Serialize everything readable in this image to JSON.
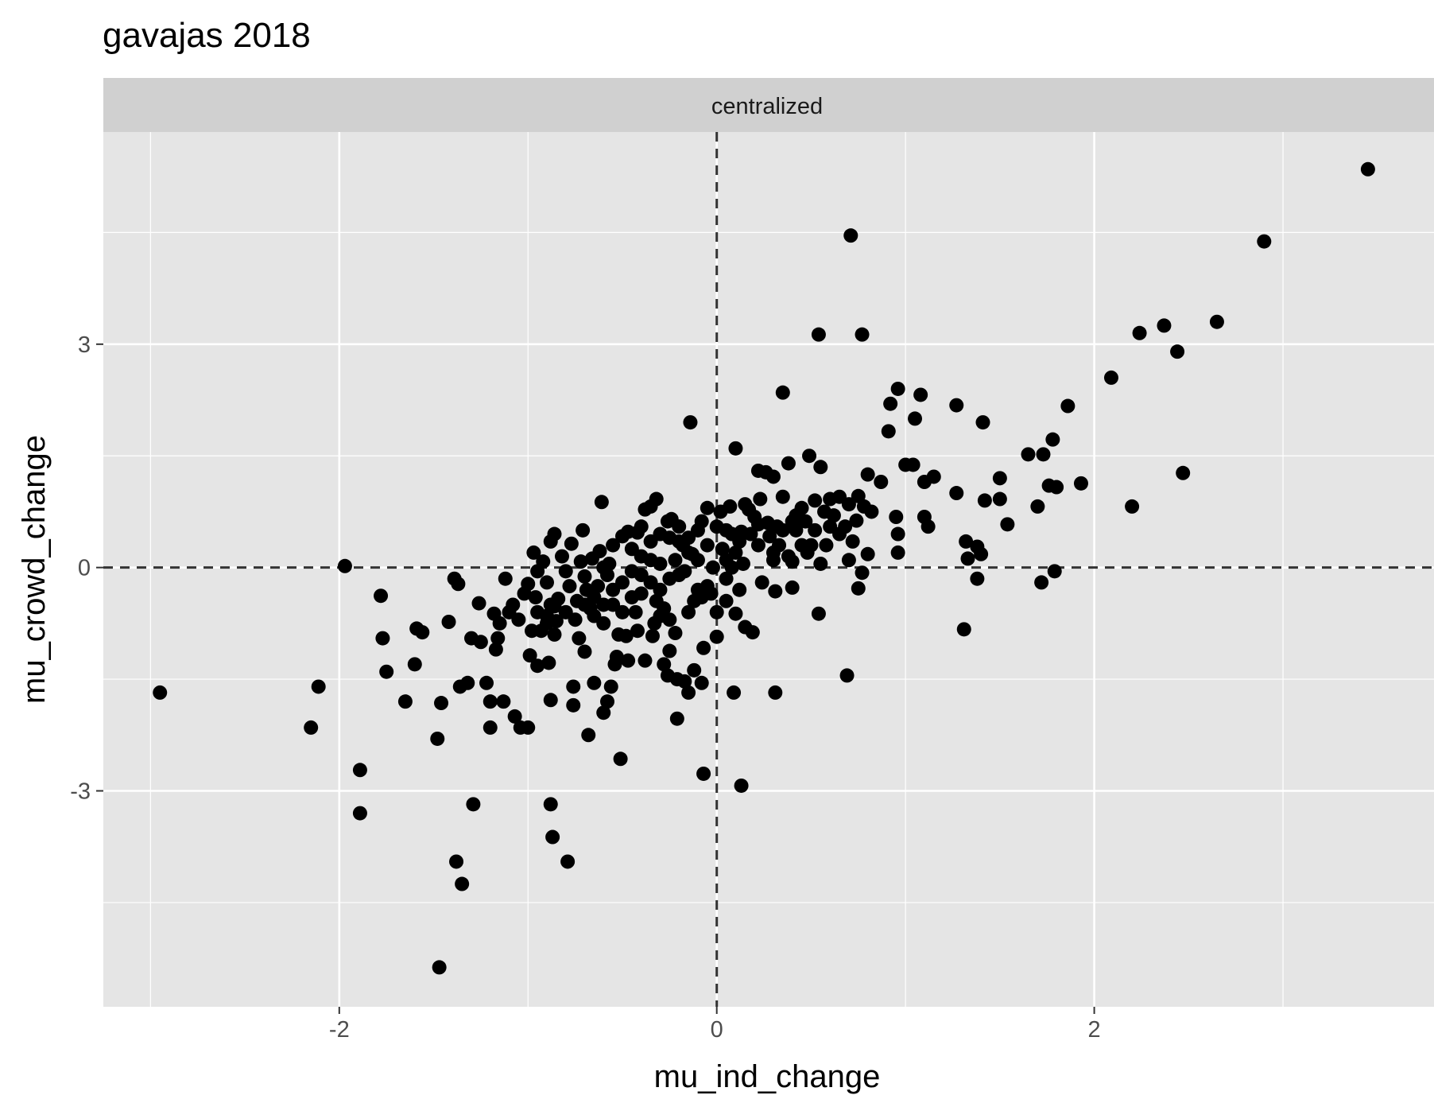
{
  "chart_data": {
    "type": "scatter",
    "title": "gavajas 2018",
    "facet_label": "centralized",
    "xlabel": "mu_ind_change",
    "ylabel": "mu_crowd_change",
    "xlim": [
      -3.25,
      3.8
    ],
    "ylim": [
      -5.9,
      5.85
    ],
    "x_ticks": [
      {
        "value": -2,
        "label": "-2"
      },
      {
        "value": 0,
        "label": "0"
      },
      {
        "value": 2,
        "label": "2"
      }
    ],
    "y_ticks": [
      {
        "value": 3,
        "label": "3"
      },
      {
        "value": 0,
        "label": "0"
      },
      {
        "value": -3,
        "label": "-3"
      }
    ],
    "x_minor": [
      -3,
      -1,
      1,
      3
    ],
    "y_minor": [
      4.5,
      1.5,
      -1.5,
      -4.5
    ],
    "ref_lines": {
      "x": 0,
      "y": 0
    },
    "grid": true,
    "legend": "none",
    "colors": {
      "panel": "#e5e5e5",
      "strip": "#d0d0d0",
      "point": "#000000",
      "grid": "#ffffff",
      "ref_line": "#333333"
    },
    "points": [
      [
        3.45,
        5.35
      ],
      [
        2.9,
        4.38
      ],
      [
        0.71,
        4.46
      ],
      [
        2.65,
        3.3
      ],
      [
        2.37,
        3.25
      ],
      [
        2.24,
        3.15
      ],
      [
        2.44,
        2.9
      ],
      [
        0.54,
        3.13
      ],
      [
        0.77,
        3.13
      ],
      [
        2.09,
        2.55
      ],
      [
        1.93,
        1.13
      ],
      [
        1.86,
        2.17
      ],
      [
        2.2,
        0.82
      ],
      [
        2.47,
        1.27
      ],
      [
        0.35,
        2.35
      ],
      [
        0.96,
        2.4
      ],
      [
        0.92,
        2.2
      ],
      [
        1.08,
        2.32
      ],
      [
        1.27,
        2.18
      ],
      [
        1.41,
        1.95
      ],
      [
        1.05,
        2.0
      ],
      [
        0.91,
        1.83
      ],
      [
        1.65,
        1.52
      ],
      [
        1.73,
        1.52
      ],
      [
        1.78,
        1.72
      ],
      [
        1.5,
        1.2
      ],
      [
        1.7,
        0.82
      ],
      [
        1.76,
        1.1
      ],
      [
        1.8,
        1.08
      ],
      [
        1.5,
        0.92
      ],
      [
        1.42,
        0.9
      ],
      [
        1.27,
        1.0
      ],
      [
        1.54,
        0.58
      ],
      [
        1.1,
        1.15
      ],
      [
        1.15,
        1.22
      ],
      [
        1.0,
        1.38
      ],
      [
        1.04,
        1.38
      ],
      [
        0.87,
        1.15
      ],
      [
        0.8,
        1.25
      ],
      [
        1.1,
        0.68
      ],
      [
        1.12,
        0.55
      ],
      [
        0.95,
        0.68
      ],
      [
        0.96,
        0.45
      ],
      [
        0.96,
        0.2
      ],
      [
        0.8,
        0.18
      ],
      [
        0.82,
        0.75
      ],
      [
        0.75,
        0.96
      ],
      [
        0.78,
        0.82
      ],
      [
        0.74,
        0.63
      ],
      [
        0.7,
        0.1
      ],
      [
        0.77,
        -0.07
      ],
      [
        0.75,
        -0.28
      ],
      [
        0.54,
        -0.62
      ],
      [
        0.69,
        -1.45
      ],
      [
        0.1,
        1.6
      ],
      [
        -0.14,
        1.95
      ],
      [
        0.49,
        1.5
      ],
      [
        0.55,
        1.35
      ],
      [
        0.38,
        1.4
      ],
      [
        0.22,
        1.3
      ],
      [
        0.26,
        1.28
      ],
      [
        0.3,
        1.22
      ],
      [
        0.23,
        0.92
      ],
      [
        0.15,
        0.85
      ],
      [
        0.22,
        0.58
      ],
      [
        0.13,
        0.48
      ],
      [
        0.05,
        0.1
      ],
      [
        0.3,
        0.1
      ],
      [
        0.4,
        0.08
      ],
      [
        0.48,
        0.2
      ],
      [
        0.55,
        0.05
      ],
      [
        0.24,
        -0.2
      ],
      [
        0.31,
        -0.32
      ],
      [
        0.4,
        -0.27
      ],
      [
        0.1,
        -0.62
      ],
      [
        0.15,
        -0.8
      ],
      [
        0.19,
        -0.87
      ],
      [
        0.0,
        -0.93
      ],
      [
        -0.07,
        -1.08
      ],
      [
        -0.12,
        -1.38
      ],
      [
        -0.17,
        -1.53
      ],
      [
        -0.15,
        -1.68
      ],
      [
        -0.08,
        -1.55
      ],
      [
        0.09,
        -1.68
      ],
      [
        0.31,
        -1.68
      ],
      [
        -0.07,
        -2.77
      ],
      [
        0.13,
        -2.93
      ],
      [
        -0.51,
        -2.57
      ],
      [
        -0.79,
        -3.95
      ],
      [
        -0.87,
        -3.62
      ],
      [
        -0.88,
        -3.18
      ],
      [
        -1.47,
        -5.37
      ],
      [
        -1.38,
        -3.95
      ],
      [
        -1.35,
        -4.25
      ],
      [
        -1.29,
        -3.18
      ],
      [
        -1.89,
        -2.72
      ],
      [
        -1.89,
        -3.3
      ],
      [
        -1.48,
        -2.3
      ],
      [
        -2.15,
        -2.15
      ],
      [
        -2.11,
        -1.6
      ],
      [
        -2.95,
        -1.68
      ],
      [
        -1.97,
        0.02
      ],
      [
        -1.78,
        -0.38
      ],
      [
        -1.77,
        -0.95
      ],
      [
        -1.75,
        -1.4
      ],
      [
        -1.65,
        -1.8
      ],
      [
        -1.6,
        -1.3
      ],
      [
        -1.59,
        -0.82
      ],
      [
        -1.56,
        -0.87
      ],
      [
        -1.46,
        -1.82
      ],
      [
        -1.42,
        -0.73
      ],
      [
        -1.39,
        -0.15
      ],
      [
        -1.37,
        -0.22
      ],
      [
        -1.36,
        -1.6
      ],
      [
        -1.32,
        -1.55
      ],
      [
        -1.3,
        -0.95
      ],
      [
        -1.26,
        -0.48
      ],
      [
        -1.25,
        -1.0
      ],
      [
        -1.22,
        -1.55
      ],
      [
        -1.2,
        -1.8
      ],
      [
        -1.2,
        -2.15
      ],
      [
        -1.17,
        -1.1
      ],
      [
        -1.16,
        -0.95
      ],
      [
        -1.13,
        -1.8
      ],
      [
        -1.1,
        -0.6
      ],
      [
        -1.07,
        -2.0
      ],
      [
        -1.04,
        -2.15
      ],
      [
        -1.0,
        -2.15
      ],
      [
        -0.99,
        -1.18
      ],
      [
        -0.95,
        -1.32
      ],
      [
        -0.93,
        -0.85
      ],
      [
        -0.97,
        0.2
      ],
      [
        -0.95,
        -0.05
      ],
      [
        -0.9,
        -0.75
      ],
      [
        -0.88,
        -1.78
      ],
      [
        -0.89,
        -1.28
      ],
      [
        -0.86,
        0.45
      ],
      [
        -0.88,
        0.35
      ],
      [
        -0.76,
        -1.6
      ],
      [
        -0.76,
        -1.85
      ],
      [
        -0.7,
        -1.13
      ],
      [
        -0.68,
        -2.25
      ],
      [
        -0.65,
        -1.55
      ],
      [
        -0.6,
        -1.95
      ],
      [
        -0.58,
        -1.8
      ],
      [
        -0.56,
        -1.6
      ],
      [
        -0.54,
        -1.3
      ],
      [
        -0.53,
        -1.2
      ],
      [
        -0.48,
        -0.92
      ],
      [
        -0.47,
        -1.25
      ],
      [
        -0.43,
        -0.6
      ],
      [
        -0.42,
        -0.85
      ],
      [
        -0.38,
        -1.25
      ],
      [
        -0.34,
        -0.92
      ],
      [
        -0.3,
        -0.65
      ],
      [
        -0.28,
        -1.3
      ],
      [
        -0.26,
        -1.45
      ],
      [
        -0.25,
        -1.12
      ],
      [
        -0.22,
        -0.88
      ],
      [
        -0.21,
        -1.5
      ],
      [
        -0.21,
        -2.03
      ],
      [
        -0.61,
        0.88
      ],
      [
        -0.71,
        0.5
      ],
      [
        -0.38,
        0.78
      ],
      [
        -0.32,
        0.92
      ],
      [
        -0.35,
        0.82
      ],
      [
        -0.26,
        0.62
      ],
      [
        -0.47,
        0.48
      ],
      [
        -0.42,
        0.47
      ],
      [
        -0.24,
        0.65
      ],
      [
        0.05,
        0.5
      ],
      [
        0.08,
        0.45
      ],
      [
        0.12,
        0.35
      ],
      [
        -0.05,
        0.8
      ],
      [
        0.02,
        0.75
      ],
      [
        0.07,
        0.82
      ],
      [
        0.17,
        0.78
      ],
      [
        0.2,
        0.68
      ],
      [
        0.27,
        0.6
      ],
      [
        0.32,
        0.55
      ],
      [
        0.35,
        0.5
      ],
      [
        0.42,
        0.7
      ],
      [
        0.45,
        0.8
      ],
      [
        0.52,
        0.9
      ],
      [
        0.6,
        0.92
      ],
      [
        0.65,
        0.95
      ],
      [
        0.7,
        0.85
      ],
      [
        0.52,
        0.5
      ],
      [
        0.45,
        0.3
      ],
      [
        0.6,
        0.55
      ],
      [
        0.65,
        0.45
      ],
      [
        0.35,
        0.95
      ],
      [
        0.3,
        0.2
      ],
      [
        0.1,
        0.2
      ],
      [
        0.0,
        0.55
      ],
      [
        0.05,
        -0.15
      ],
      [
        0.12,
        -0.3
      ],
      [
        -0.03,
        -0.35
      ],
      [
        -0.08,
        -0.4
      ],
      [
        -0.12,
        -0.45
      ],
      [
        -0.05,
        -0.25
      ],
      [
        -0.02,
        0.0
      ],
      [
        0.03,
        0.25
      ],
      [
        -0.18,
        0.3
      ],
      [
        -0.22,
        0.1
      ],
      [
        -0.28,
        -0.55
      ],
      [
        -0.32,
        -0.45
      ],
      [
        -0.35,
        0.35
      ],
      [
        -0.4,
        0.15
      ],
      [
        -0.45,
        -0.05
      ],
      [
        -0.5,
        -0.6
      ],
      [
        -0.52,
        -0.9
      ],
      [
        -0.55,
        -0.3
      ],
      [
        -0.57,
        0.05
      ],
      [
        -0.6,
        -0.75
      ],
      [
        -0.62,
        0.22
      ],
      [
        -0.65,
        -0.4
      ],
      [
        -0.67,
        -0.55
      ],
      [
        -0.7,
        -0.12
      ],
      [
        -0.72,
        0.08
      ],
      [
        -0.73,
        -0.95
      ],
      [
        -0.78,
        -0.25
      ],
      [
        -0.8,
        -0.6
      ],
      [
        -0.82,
        0.15
      ],
      [
        -0.84,
        -0.42
      ],
      [
        -0.86,
        -0.9
      ],
      [
        -0.9,
        -0.2
      ],
      [
        -0.92,
        0.08
      ],
      [
        -0.95,
        -0.6
      ],
      [
        -0.98,
        -0.85
      ],
      [
        -1.02,
        -0.35
      ],
      [
        -1.05,
        -0.7
      ],
      [
        -1.08,
        -0.5
      ],
      [
        -1.12,
        -0.15
      ],
      [
        -1.15,
        -0.75
      ],
      [
        -1.18,
        -0.62
      ],
      [
        -0.88,
        -0.5
      ],
      [
        -0.9,
        -0.65
      ],
      [
        -0.96,
        -0.4
      ],
      [
        -1.0,
        -0.22
      ],
      [
        -0.85,
        -0.72
      ],
      [
        -0.86,
        -0.52
      ],
      [
        -0.2,
        0.55
      ],
      [
        -0.15,
        0.4
      ],
      [
        -0.1,
        0.5
      ],
      [
        -0.08,
        0.62
      ],
      [
        -0.13,
        0.18
      ],
      [
        -0.17,
        -0.05
      ],
      [
        -0.25,
        -0.15
      ],
      [
        -0.3,
        0.05
      ],
      [
        -0.35,
        -0.2
      ],
      [
        -0.4,
        -0.35
      ],
      [
        -0.45,
        0.25
      ],
      [
        -0.5,
        0.42
      ],
      [
        -0.55,
        0.3
      ],
      [
        -0.58,
        -0.1
      ],
      [
        -0.63,
        -0.25
      ],
      [
        -0.66,
        0.12
      ],
      [
        -0.69,
        -0.3
      ],
      [
        -0.74,
        -0.45
      ],
      [
        -0.77,
        0.32
      ],
      [
        -0.8,
        -0.05
      ],
      [
        0.14,
        0.05
      ],
      [
        0.18,
        0.45
      ],
      [
        0.22,
        0.3
      ],
      [
        0.28,
        0.42
      ],
      [
        0.33,
        0.3
      ],
      [
        0.38,
        0.15
      ],
      [
        0.42,
        0.5
      ],
      [
        0.47,
        0.62
      ],
      [
        0.5,
        0.3
      ],
      [
        0.57,
        0.75
      ],
      [
        0.62,
        0.7
      ],
      [
        0.68,
        0.55
      ],
      [
        0.72,
        0.35
      ],
      [
        0.58,
        0.3
      ],
      [
        0.4,
        0.62
      ],
      [
        -0.6,
        -0.5
      ],
      [
        -0.5,
        -0.2
      ],
      [
        -0.4,
        -0.1
      ],
      [
        -0.3,
        -0.3
      ],
      [
        -0.2,
        -0.1
      ],
      [
        -0.1,
        0.1
      ],
      [
        -0.05,
        0.3
      ],
      [
        -0.15,
        0.2
      ],
      [
        -0.25,
        0.4
      ],
      [
        -0.35,
        0.1
      ],
      [
        -0.45,
        -0.4
      ],
      [
        -0.55,
        -0.5
      ],
      [
        -0.65,
        -0.65
      ],
      [
        -0.75,
        -0.7
      ],
      [
        -0.6,
        0.0
      ],
      [
        -0.7,
        -0.5
      ],
      [
        -0.4,
        0.55
      ],
      [
        -0.3,
        0.45
      ],
      [
        -0.2,
        0.35
      ],
      [
        0.0,
        -0.6
      ],
      [
        0.05,
        -0.45
      ],
      [
        -0.25,
        -0.7
      ],
      [
        -0.33,
        -0.75
      ],
      [
        -0.15,
        -0.6
      ],
      [
        -0.1,
        -0.3
      ],
      [
        0.08,
        0.0
      ],
      [
        1.32,
        0.35
      ],
      [
        1.38,
        0.28
      ],
      [
        1.33,
        0.12
      ],
      [
        1.4,
        0.18
      ],
      [
        1.38,
        -0.15
      ],
      [
        1.31,
        -0.83
      ],
      [
        1.72,
        -0.2
      ],
      [
        1.79,
        -0.05
      ]
    ]
  }
}
